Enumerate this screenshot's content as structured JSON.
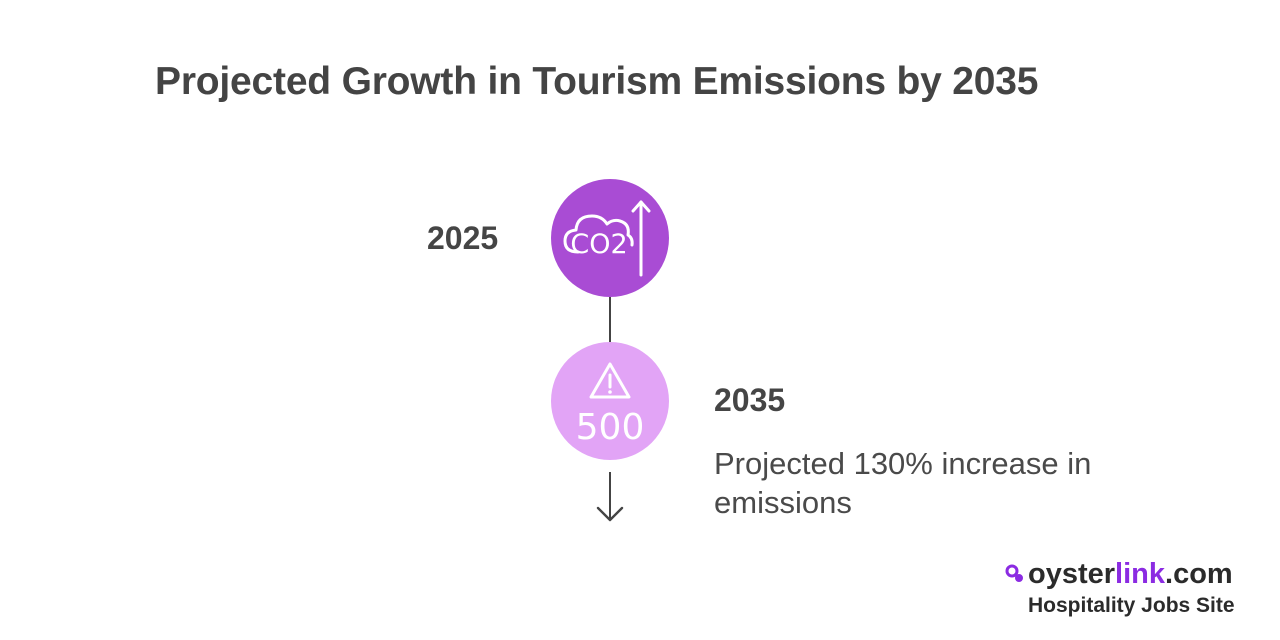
{
  "title": "Projected Growth in Tourism Emissions by 2035",
  "timeline": {
    "start": {
      "year": "2025",
      "icon": "co2-cloud-rising-icon",
      "icon_text": "CO2",
      "color": "#a94cd4"
    },
    "end": {
      "year": "2035",
      "icon": "warning-500-icon",
      "icon_text": "500",
      "description": "Projected 130% increase in emissions",
      "color": "#e2a4f6"
    }
  },
  "brand": {
    "name_part1": "oyster",
    "name_part2": "link",
    "name_part3": ".com",
    "tagline": "Hospitality Jobs Site",
    "accent_color": "#8b2be2"
  }
}
